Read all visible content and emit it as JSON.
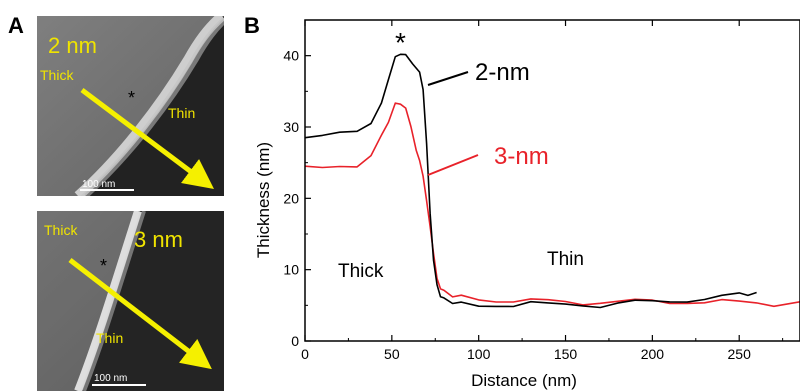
{
  "panel_a": {
    "letter": "A",
    "top_image": {
      "label": "2 nm",
      "thick_label": "Thick",
      "thin_label": "Thin",
      "asterisk": "*",
      "scale_bar": "100 nm"
    },
    "bottom_image": {
      "label": "3 nm",
      "thick_label": "Thick",
      "thin_label": "Thin",
      "asterisk": "*",
      "scale_bar": "100 nm"
    }
  },
  "panel_b": {
    "letter": "B",
    "annotations": {
      "peak_asterisk": "*",
      "thick_region": "Thick",
      "thin_region": "Thin",
      "series_label_2nm": "2-nm",
      "series_label_3nm": "3-nm"
    }
  },
  "colors": {
    "series_2nm": "#000000",
    "series_3nm": "#e8222a",
    "arrow_yellow": "#f5f000",
    "label_yellow": "#f0e400"
  },
  "chart_data": {
    "type": "line",
    "xlabel": "Distance (nm)",
    "ylabel": "Thickness (nm)",
    "xlim": [
      0,
      285
    ],
    "ylim": [
      0,
      45
    ],
    "xticks": [
      0,
      50,
      100,
      150,
      200,
      250
    ],
    "yticks": [
      0,
      10,
      20,
      30,
      40
    ],
    "series": [
      {
        "name": "2-nm",
        "color": "#000000",
        "x": [
          0,
          10,
          20,
          30,
          38,
          44,
          48,
          52,
          55,
          58,
          62,
          66,
          68,
          70,
          72,
          74,
          76,
          78,
          80,
          85,
          90,
          100,
          110,
          120,
          130,
          140,
          150,
          160,
          170,
          180,
          190,
          200,
          210,
          220,
          230,
          240,
          250,
          255,
          260
        ],
        "y": [
          28.5,
          28.5,
          29.0,
          29.5,
          30.5,
          33.0,
          37.0,
          39.5,
          40.5,
          40.0,
          39.0,
          37.5,
          35.0,
          28.0,
          18.0,
          11.0,
          8.0,
          6.5,
          5.8,
          5.6,
          5.2,
          5.0,
          5.2,
          5.0,
          5.3,
          5.0,
          5.1,
          5.2,
          5.0,
          5.3,
          5.4,
          5.4,
          5.6,
          5.8,
          6.0,
          6.2,
          6.4,
          6.6,
          6.8
        ]
      },
      {
        "name": "3-nm",
        "color": "#e8222a",
        "x": [
          0,
          10,
          20,
          30,
          38,
          44,
          48,
          52,
          55,
          58,
          61,
          64,
          66,
          68,
          70,
          72,
          74,
          76,
          78,
          80,
          85,
          90,
          100,
          110,
          120,
          130,
          140,
          150,
          160,
          170,
          180,
          190,
          200,
          210,
          220,
          230,
          240,
          250,
          260,
          270,
          285
        ],
        "y": [
          24.5,
          24.0,
          24.2,
          24.5,
          26.0,
          28.5,
          31.0,
          33.0,
          33.5,
          32.5,
          30.0,
          27.0,
          25.0,
          23.0,
          20.0,
          16.0,
          12.0,
          9.0,
          7.5,
          6.8,
          6.5,
          6.3,
          6.0,
          5.8,
          5.5,
          5.6,
          5.5,
          5.6,
          5.4,
          5.5,
          5.4,
          5.5,
          5.6,
          5.5,
          5.6,
          5.4,
          5.5,
          5.3,
          5.4,
          5.2,
          5.5
        ]
      }
    ]
  }
}
